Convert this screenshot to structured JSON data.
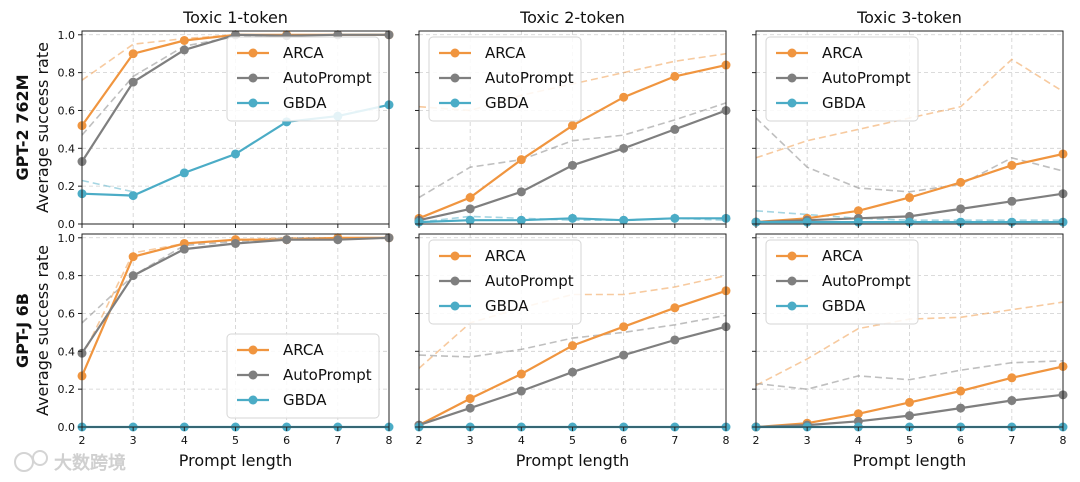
{
  "chart_data": {
    "type": "line",
    "columns": [
      "Toxic 1-token",
      "Toxic 2-token",
      "Toxic 3-token"
    ],
    "rows": [
      {
        "name": "GPT-2 762M",
        "ylabel": "Average success rate"
      },
      {
        "name": "GPT-J 6B",
        "ylabel": "Average success rate"
      }
    ],
    "xlabel": "Prompt length",
    "x": [
      2,
      3,
      4,
      5,
      6,
      7,
      8
    ],
    "xlim": [
      2,
      8
    ],
    "ylim": [
      0,
      1.02
    ],
    "yticks": [
      0.0,
      0.2,
      0.4,
      0.6,
      0.8,
      1.0
    ],
    "ytick_labels": [
      "0.0",
      "0.2",
      "0.4",
      "0.6",
      "0.8",
      "1.0"
    ],
    "grid": true,
    "legend_entries": [
      "ARCA",
      "AutoPrompt",
      "GBDA"
    ],
    "colors": {
      "ARCA": "#f0953f",
      "AutoPrompt": "#7f7f7f",
      "GBDA": "#4bacc6"
    },
    "panels": [
      {
        "row": 0,
        "col": 0,
        "legend": "top-right",
        "series": [
          {
            "name": "ARCA",
            "values": [
              0.52,
              0.9,
              0.97,
              1.0,
              1.0,
              1.0,
              1.0
            ]
          },
          {
            "name": "AutoPrompt",
            "values": [
              0.33,
              0.75,
              0.92,
              1.0,
              0.995,
              1.0,
              1.0
            ]
          },
          {
            "name": "GBDA",
            "values": [
              0.16,
              0.15,
              0.27,
              0.37,
              0.54,
              0.57,
              0.63
            ]
          }
        ],
        "dashed": [
          {
            "name": "ARCA",
            "values": [
              0.76,
              0.95,
              0.98,
              1.0,
              1.0,
              1.0,
              1.0
            ]
          },
          {
            "name": "AutoPrompt",
            "values": [
              0.47,
              0.78,
              0.94,
              0.99,
              1.0,
              1.0,
              1.0
            ]
          },
          {
            "name": "GBDA",
            "values": [
              0.23,
              0.17,
              null,
              null,
              null,
              null,
              null
            ]
          }
        ]
      },
      {
        "row": 0,
        "col": 1,
        "legend": "top-left",
        "series": [
          {
            "name": "ARCA",
            "values": [
              0.03,
              0.14,
              0.34,
              0.52,
              0.67,
              0.78,
              0.84
            ]
          },
          {
            "name": "AutoPrompt",
            "values": [
              0.02,
              0.08,
              0.17,
              0.31,
              0.4,
              0.5,
              0.6
            ]
          },
          {
            "name": "GBDA",
            "values": [
              0.01,
              0.02,
              0.02,
              0.03,
              0.02,
              0.03,
              0.03
            ]
          }
        ],
        "dashed": [
          {
            "name": "ARCA",
            "values": [
              0.62,
              0.6,
              0.68,
              0.74,
              0.8,
              0.86,
              0.9
            ]
          },
          {
            "name": "AutoPrompt",
            "values": [
              0.14,
              0.3,
              0.34,
              0.44,
              0.47,
              0.55,
              0.64
            ]
          },
          {
            "name": "GBDA",
            "values": [
              0.01,
              0.04,
              0.03,
              0.02,
              0.02,
              0.03,
              0.02
            ]
          }
        ]
      },
      {
        "row": 0,
        "col": 2,
        "legend": "top-left",
        "series": [
          {
            "name": "ARCA",
            "values": [
              0.01,
              0.03,
              0.07,
              0.14,
              0.22,
              0.31,
              0.37
            ]
          },
          {
            "name": "AutoPrompt",
            "values": [
              0.01,
              0.02,
              0.03,
              0.04,
              0.08,
              0.12,
              0.16
            ]
          },
          {
            "name": "GBDA",
            "values": [
              0.01,
              0.01,
              0.01,
              0.01,
              0.01,
              0.01,
              0.01
            ]
          }
        ],
        "dashed": [
          {
            "name": "ARCA",
            "values": [
              0.35,
              0.44,
              0.5,
              0.56,
              0.62,
              0.87,
              0.7
            ]
          },
          {
            "name": "AutoPrompt",
            "values": [
              0.56,
              0.3,
              0.19,
              0.17,
              0.21,
              0.35,
              0.28
            ]
          },
          {
            "name": "GBDA",
            "values": [
              0.07,
              0.05,
              0.03,
              0.02,
              0.02,
              0.02,
              0.02
            ]
          }
        ]
      },
      {
        "row": 1,
        "col": 0,
        "legend": "bottom-right",
        "series": [
          {
            "name": "ARCA",
            "values": [
              0.27,
              0.9,
              0.97,
              0.99,
              0.99,
              1.0,
              1.0
            ]
          },
          {
            "name": "AutoPrompt",
            "values": [
              0.39,
              0.8,
              0.94,
              0.97,
              0.99,
              0.99,
              1.0
            ]
          },
          {
            "name": "GBDA",
            "values": [
              0.0,
              0.0,
              0.0,
              0.0,
              0.0,
              0.0,
              0.0
            ]
          }
        ],
        "dashed": [
          {
            "name": "ARCA",
            "values": [
              0.37,
              0.92,
              0.97,
              0.99,
              1.0,
              1.0,
              1.0
            ]
          },
          {
            "name": "AutoPrompt",
            "values": [
              0.55,
              0.8,
              0.96,
              0.98,
              1.0,
              1.0,
              1.0
            ]
          },
          {
            "name": "GBDA",
            "values": [
              0.0,
              0.0,
              0.0,
              0.0,
              0.0,
              0.0,
              0.0
            ]
          }
        ]
      },
      {
        "row": 1,
        "col": 1,
        "legend": "top-left",
        "series": [
          {
            "name": "ARCA",
            "values": [
              0.01,
              0.15,
              0.28,
              0.43,
              0.53,
              0.63,
              0.72
            ]
          },
          {
            "name": "AutoPrompt",
            "values": [
              0.01,
              0.1,
              0.19,
              0.29,
              0.38,
              0.46,
              0.53
            ]
          },
          {
            "name": "GBDA",
            "values": [
              0.0,
              0.0,
              0.0,
              0.0,
              0.0,
              0.0,
              0.0
            ]
          }
        ],
        "dashed": [
          {
            "name": "ARCA",
            "values": [
              0.31,
              0.55,
              0.63,
              0.7,
              0.7,
              0.74,
              0.8
            ]
          },
          {
            "name": "AutoPrompt",
            "values": [
              0.38,
              0.37,
              0.41,
              0.47,
              0.5,
              0.54,
              0.59
            ]
          },
          {
            "name": "GBDA",
            "values": [
              0.0,
              0.0,
              0.0,
              0.0,
              0.0,
              0.0,
              0.0
            ]
          }
        ]
      },
      {
        "row": 1,
        "col": 2,
        "legend": "top-left",
        "series": [
          {
            "name": "ARCA",
            "values": [
              0.0,
              0.02,
              0.07,
              0.13,
              0.19,
              0.26,
              0.32
            ]
          },
          {
            "name": "AutoPrompt",
            "values": [
              0.0,
              0.01,
              0.03,
              0.06,
              0.1,
              0.14,
              0.17
            ]
          },
          {
            "name": "GBDA",
            "values": [
              0.0,
              0.0,
              0.0,
              0.0,
              0.0,
              0.0,
              0.0
            ]
          }
        ],
        "dashed": [
          {
            "name": "ARCA",
            "values": [
              0.22,
              0.36,
              0.52,
              0.57,
              0.58,
              0.62,
              0.66
            ]
          },
          {
            "name": "AutoPrompt",
            "values": [
              0.23,
              0.2,
              0.27,
              0.25,
              0.3,
              0.34,
              0.35
            ]
          },
          {
            "name": "GBDA",
            "values": [
              0.0,
              0.0,
              0.0,
              0.0,
              0.0,
              0.0,
              0.0
            ]
          }
        ]
      }
    ]
  },
  "watermark": "大数跨境"
}
